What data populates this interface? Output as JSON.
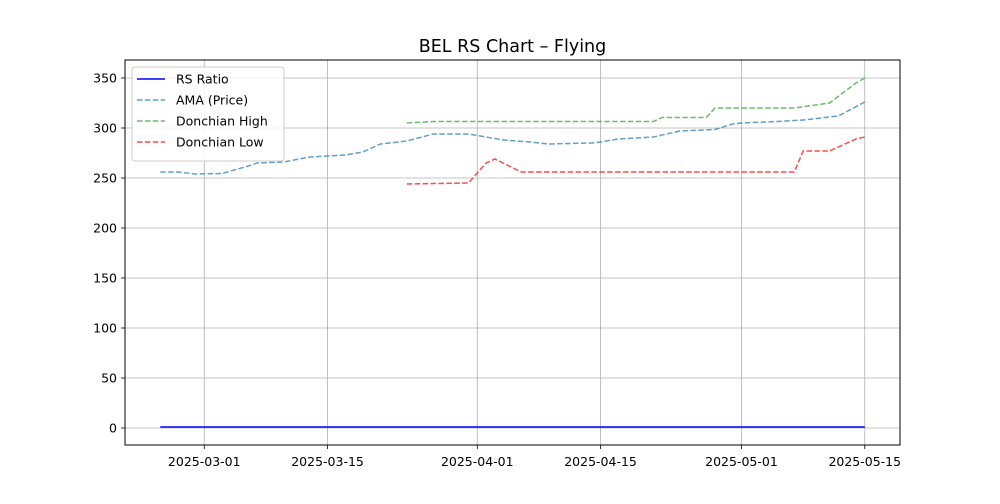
{
  "chart_data": {
    "type": "line",
    "title": "BEL RS Chart – Flying",
    "xlabel": "",
    "ylabel": "",
    "x_type": "date",
    "xlim": [
      "2025-02-20",
      "2025-05-19"
    ],
    "ylim": [
      -17,
      368
    ],
    "x_ticks": [
      "2025-03-01",
      "2025-03-15",
      "2025-04-01",
      "2025-04-15",
      "2025-05-01",
      "2025-05-15"
    ],
    "y_ticks": [
      0,
      50,
      100,
      150,
      200,
      250,
      300,
      350
    ],
    "grid": true,
    "legend_position": "upper-left",
    "series": [
      {
        "name": "RS Ratio",
        "color": "#0000ff",
        "style": "solid",
        "points": [
          [
            "2025-02-24",
            1
          ],
          [
            "2025-05-15",
            1
          ]
        ]
      },
      {
        "name": "AMA (Price)",
        "color": "#1f77b4",
        "style": "dashed",
        "points": [
          [
            "2025-02-24",
            256
          ],
          [
            "2025-02-26",
            256
          ],
          [
            "2025-02-28",
            254
          ],
          [
            "2025-03-03",
            254.5
          ],
          [
            "2025-03-06",
            262
          ],
          [
            "2025-03-07",
            265
          ],
          [
            "2025-03-10",
            266
          ],
          [
            "2025-03-13",
            271
          ],
          [
            "2025-03-17",
            273
          ],
          [
            "2025-03-19",
            276
          ],
          [
            "2025-03-21",
            284
          ],
          [
            "2025-03-24",
            287
          ],
          [
            "2025-03-27",
            294
          ],
          [
            "2025-03-31",
            294
          ],
          [
            "2025-04-02",
            291
          ],
          [
            "2025-04-04",
            288
          ],
          [
            "2025-04-07",
            286
          ],
          [
            "2025-04-09",
            284
          ],
          [
            "2025-04-14",
            285
          ],
          [
            "2025-04-15",
            286
          ],
          [
            "2025-04-17",
            289
          ],
          [
            "2025-04-21",
            291
          ],
          [
            "2025-04-24",
            297
          ],
          [
            "2025-04-28",
            298.5
          ],
          [
            "2025-04-30",
            304
          ],
          [
            "2025-05-01",
            305
          ],
          [
            "2025-05-05",
            306.5
          ],
          [
            "2025-05-08",
            308
          ],
          [
            "2025-05-12",
            312
          ],
          [
            "2025-05-15",
            326
          ]
        ]
      },
      {
        "name": "Donchian High",
        "color": "#2ca02c",
        "style": "dashed",
        "points": [
          [
            "2025-03-24",
            305
          ],
          [
            "2025-03-27",
            306.5
          ],
          [
            "2025-04-21",
            306.5
          ],
          [
            "2025-04-22",
            310.5
          ],
          [
            "2025-04-27",
            310.5
          ],
          [
            "2025-04-28",
            320
          ],
          [
            "2025-05-07",
            320
          ],
          [
            "2025-05-11",
            325
          ],
          [
            "2025-05-14",
            345
          ],
          [
            "2025-05-15",
            350
          ]
        ]
      },
      {
        "name": "Donchian Low",
        "color": "#ff0000",
        "style": "dashed",
        "points": [
          [
            "2025-03-24",
            244
          ],
          [
            "2025-03-31",
            245
          ],
          [
            "2025-04-02",
            265
          ],
          [
            "2025-04-03",
            269
          ],
          [
            "2025-04-06",
            256
          ],
          [
            "2025-05-07",
            256
          ],
          [
            "2025-05-08",
            277
          ],
          [
            "2025-05-11",
            277
          ],
          [
            "2025-05-14",
            289
          ],
          [
            "2025-05-15",
            291
          ]
        ]
      }
    ]
  }
}
